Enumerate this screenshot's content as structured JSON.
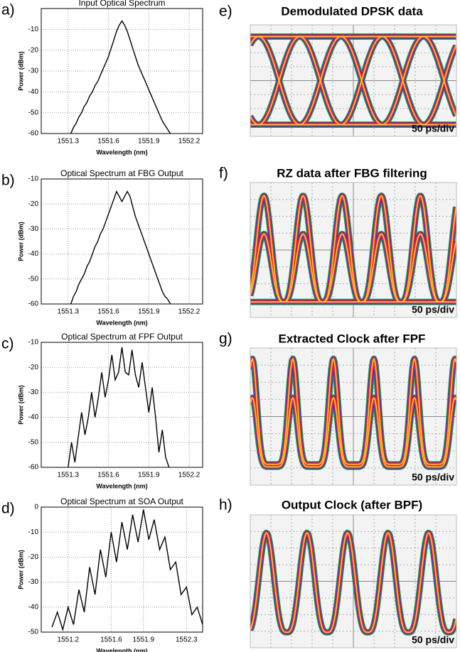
{
  "chart_data": [
    {
      "type": "line",
      "label": "a)",
      "title": "Input Optical Spectrum",
      "xlabel": "Wavelength (nm)",
      "ylabel": "Power (dBm)",
      "x": [
        1551.32,
        1551.34,
        1551.36,
        1551.38,
        1551.4,
        1551.42,
        1551.44,
        1551.46,
        1551.48,
        1551.5,
        1551.52,
        1551.54,
        1551.56,
        1551.58,
        1551.6,
        1551.62,
        1551.64,
        1551.66,
        1551.68,
        1551.7,
        1551.72,
        1551.74,
        1551.76,
        1551.78,
        1551.8,
        1551.82,
        1551.84,
        1551.86,
        1551.88,
        1551.9,
        1551.92,
        1551.94,
        1551.96,
        1551.98,
        1552.0,
        1552.02,
        1552.04,
        1552.06
      ],
      "values": [
        -60,
        -57,
        -55,
        -52,
        -50,
        -47,
        -45,
        -42,
        -40,
        -37,
        -35,
        -32,
        -29,
        -26,
        -23,
        -19,
        -15,
        -11,
        -8,
        -6,
        -8,
        -11,
        -15,
        -19,
        -23,
        -27,
        -30,
        -33,
        -36,
        -39,
        -42,
        -45,
        -48,
        -51,
        -54,
        -56,
        -58,
        -60
      ],
      "color": "#000000",
      "xlim": [
        1551.1,
        1552.3
      ],
      "xticks": [
        1551.3,
        1551.6,
        1551.9,
        1552.2
      ],
      "ylim": [
        -60,
        0
      ],
      "yticks": [
        -60,
        -50,
        -40,
        -30,
        -20,
        -10
      ],
      "grid": true
    },
    {
      "type": "line",
      "label": "b)",
      "title": "Optical Spectrum at FBG Output",
      "xlabel": "Wavelength (nm)",
      "ylabel": "Power (dBm)",
      "x": [
        1551.32,
        1551.34,
        1551.36,
        1551.38,
        1551.4,
        1551.42,
        1551.44,
        1551.46,
        1551.48,
        1551.5,
        1551.52,
        1551.54,
        1551.56,
        1551.58,
        1551.6,
        1551.62,
        1551.64,
        1551.66,
        1551.68,
        1551.7,
        1551.72,
        1551.74,
        1551.76,
        1551.78,
        1551.8,
        1551.82,
        1551.84,
        1551.86,
        1551.88,
        1551.9,
        1551.92,
        1551.94,
        1551.96,
        1551.98,
        1552.0,
        1552.02,
        1552.04,
        1552.06
      ],
      "values": [
        -60,
        -57,
        -55,
        -52,
        -50,
        -48,
        -45,
        -43,
        -40,
        -37,
        -35,
        -32,
        -30,
        -27,
        -24,
        -21,
        -18,
        -15,
        -17,
        -19,
        -17,
        -15,
        -17,
        -21,
        -25,
        -28,
        -31,
        -34,
        -37,
        -40,
        -43,
        -46,
        -49,
        -52,
        -55,
        -57,
        -58,
        -60
      ],
      "color": "#000000",
      "xlim": [
        1551.1,
        1552.3
      ],
      "xticks": [
        1551.3,
        1551.6,
        1551.9,
        1552.2
      ],
      "ylim": [
        -60,
        -10
      ],
      "yticks": [
        -60,
        -50,
        -40,
        -30,
        -20,
        -10
      ],
      "grid": true
    },
    {
      "type": "line",
      "label": "c)",
      "title": "Optical Spectrum at FPF Output",
      "xlabel": "Wavelength (nm)",
      "ylabel": "Power (dBm)",
      "x": [
        1551.3,
        1551.325,
        1551.35,
        1551.375,
        1551.4,
        1551.425,
        1551.45,
        1551.475,
        1551.5,
        1551.525,
        1551.55,
        1551.575,
        1551.6,
        1551.625,
        1551.65,
        1551.675,
        1551.7,
        1551.725,
        1551.75,
        1551.775,
        1551.8,
        1551.825,
        1551.85,
        1551.875,
        1551.9,
        1551.925,
        1551.95,
        1551.975,
        1552.0,
        1552.025,
        1552.05
      ],
      "values": [
        -60,
        -50,
        -58,
        -48,
        -38,
        -47,
        -40,
        -30,
        -40,
        -32,
        -22,
        -32,
        -25,
        -15,
        -25,
        -22,
        -12,
        -22,
        -23,
        -13,
        -23,
        -28,
        -18,
        -28,
        -38,
        -28,
        -40,
        -54,
        -45,
        -56,
        -60
      ],
      "color": "#000000",
      "xlim": [
        1551.1,
        1552.3
      ],
      "xticks": [
        1551.3,
        1551.6,
        1551.9,
        1552.2
      ],
      "ylim": [
        -60,
        -10
      ],
      "yticks": [
        -60,
        -50,
        -40,
        -30,
        -20,
        -10
      ],
      "grid": true
    },
    {
      "type": "line",
      "label": "d)",
      "title": "Optical Spectrum at SOA Output",
      "xlabel": "Wavelength (nm)",
      "ylabel": "Power (dBm)",
      "x": [
        1551.05,
        1551.1,
        1551.15,
        1551.2,
        1551.25,
        1551.3,
        1551.35,
        1551.4,
        1551.45,
        1551.5,
        1551.55,
        1551.6,
        1551.65,
        1551.7,
        1551.75,
        1551.8,
        1551.85,
        1551.9,
        1551.95,
        1552.0,
        1552.05,
        1552.1,
        1552.15,
        1552.2,
        1552.25,
        1552.3,
        1552.35,
        1552.4,
        1552.45
      ],
      "values": [
        -48,
        -42,
        -49,
        -40,
        -47,
        -33,
        -42,
        -24,
        -35,
        -17,
        -28,
        -10,
        -22,
        -6,
        -17,
        -3,
        -14,
        -1,
        -13,
        -5,
        -17,
        -12,
        -25,
        -22,
        -35,
        -32,
        -43,
        -40,
        -47
      ],
      "color": "#000000",
      "xlim": [
        1550.95,
        1552.45
      ],
      "xticks": [
        1551.2,
        1551.6,
        1551.9,
        1552.3
      ],
      "ylim": [
        -50,
        0
      ],
      "yticks": [
        -50,
        -40,
        -30,
        -20,
        -10,
        0
      ],
      "grid": true
    }
  ],
  "eye_diagrams": [
    {
      "label": "e)",
      "title": "Demodulated DPSK data",
      "scale": "50 ps/div"
    },
    {
      "label": "f)",
      "title": "RZ data after FBG filtering",
      "scale": "50 ps/div"
    },
    {
      "label": "g)",
      "title": "Extracted Clock after FPF",
      "scale": "50 ps/div"
    },
    {
      "label": "h)",
      "title": "Output Clock (after BPF)",
      "scale": "50 ps/div"
    }
  ]
}
